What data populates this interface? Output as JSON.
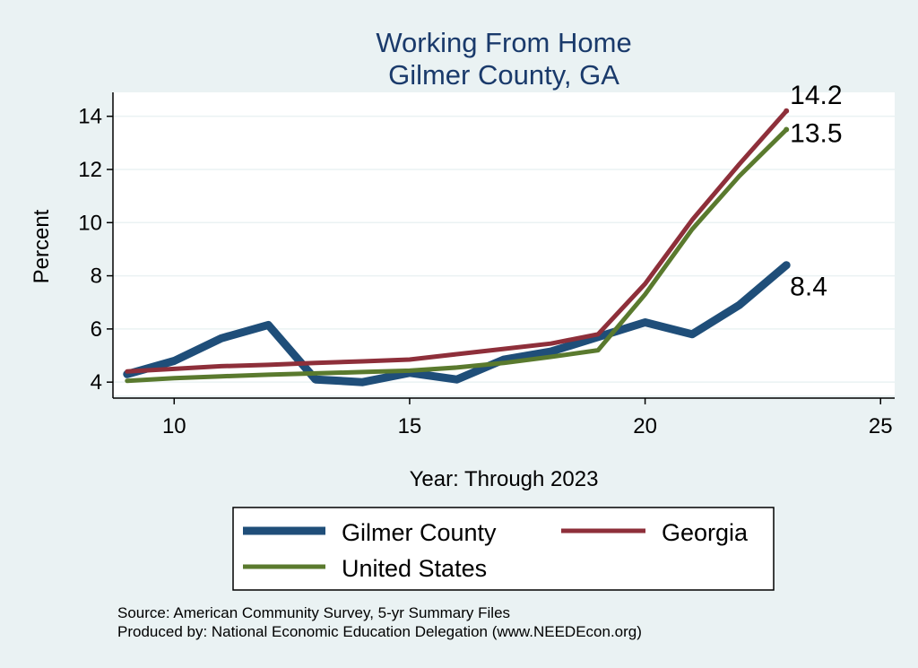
{
  "chart_data": {
    "type": "line",
    "title": "Working From Home",
    "subtitle": "Gilmer County, GA",
    "xlabel": "Year: Through 2023",
    "ylabel": "Percent",
    "xlim": [
      8.7,
      25.3
    ],
    "ylim": [
      3.5,
      14.9
    ],
    "xticks": [
      10,
      15,
      20,
      25
    ],
    "yticks": [
      4,
      6,
      8,
      10,
      12,
      14
    ],
    "grid": true,
    "legend_position": "bottom",
    "series": [
      {
        "name": "Gilmer County",
        "color": "#1f4e79",
        "width": 9,
        "x": [
          9,
          10,
          11,
          12,
          13,
          14,
          15,
          16,
          17,
          18,
          19,
          20,
          21,
          22,
          23
        ],
        "values": [
          4.3,
          4.8,
          5.65,
          6.15,
          4.1,
          4.0,
          4.35,
          4.1,
          4.85,
          5.15,
          5.7,
          6.25,
          5.8,
          6.9,
          8.4
        ],
        "end_label": "8.4"
      },
      {
        "name": "Georgia",
        "color": "#8e2f3a",
        "width": 5,
        "x": [
          9,
          10,
          11,
          12,
          13,
          14,
          15,
          16,
          17,
          18,
          19,
          20,
          21,
          22,
          23
        ],
        "values": [
          4.4,
          4.5,
          4.6,
          4.65,
          4.72,
          4.78,
          4.85,
          5.05,
          5.25,
          5.45,
          5.8,
          7.7,
          10.1,
          12.2,
          14.2
        ],
        "end_label": "14.2"
      },
      {
        "name": "United States",
        "color": "#5a7a2e",
        "width": 5,
        "x": [
          9,
          10,
          11,
          12,
          13,
          14,
          15,
          16,
          17,
          18,
          19,
          20,
          21,
          22,
          23
        ],
        "values": [
          4.05,
          4.15,
          4.22,
          4.28,
          4.33,
          4.38,
          4.43,
          4.55,
          4.72,
          4.95,
          5.2,
          7.3,
          9.75,
          11.75,
          13.5
        ],
        "end_label": "13.5"
      }
    ]
  },
  "source_note": "Source: American Community Survey, 5-yr Summary Files",
  "producer_note": "Produced by: National Economic Education Delegation (www.NEEDEcon.org)"
}
